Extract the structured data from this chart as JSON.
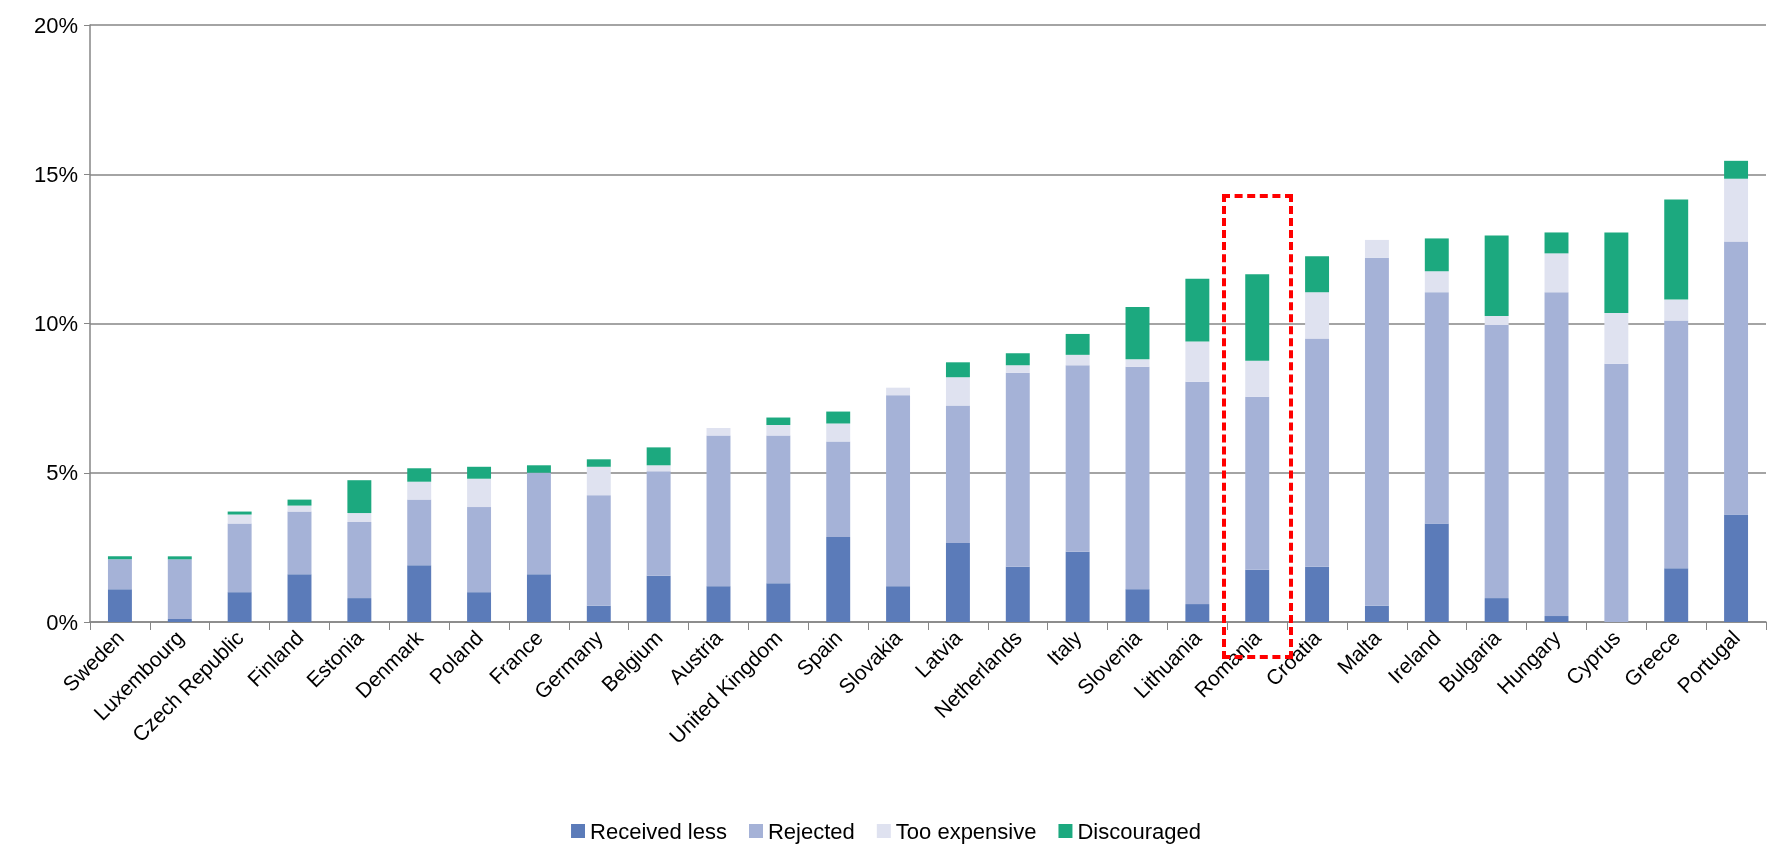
{
  "chart_data": {
    "type": "bar",
    "stacked": true,
    "categories": [
      "Sweden",
      "Luxembourg",
      "Czech Republic",
      "Finland",
      "Estonia",
      "Denmark",
      "Poland",
      "France",
      "Germany",
      "Belgium",
      "Austria",
      "United Kingdom",
      "Spain",
      "Slovakia",
      "Latvia",
      "Netherlands",
      "Italy",
      "Slovenia",
      "Lithuania",
      "Romania",
      "Croatia",
      "Malta",
      "Ireland",
      "Bulgaria",
      "Hungary",
      "Cyprus",
      "Greece",
      "Portugal"
    ],
    "series": [
      {
        "name": "Received less",
        "color": "#5b7bb9",
        "values": [
          1.1,
          0.1,
          1.0,
          1.6,
          0.8,
          1.9,
          1.0,
          1.6,
          0.55,
          1.55,
          1.2,
          1.3,
          2.85,
          1.2,
          2.65,
          1.85,
          2.35,
          1.1,
          0.6,
          1.75,
          1.85,
          0.55,
          3.3,
          0.8,
          0.2,
          0,
          1.8,
          3.6
        ]
      },
      {
        "name": "Rejected",
        "color": "#a5b2d7",
        "values": [
          1.0,
          2.0,
          2.3,
          2.1,
          2.55,
          2.2,
          2.85,
          3.4,
          3.7,
          3.5,
          5.05,
          4.95,
          3.2,
          6.4,
          4.6,
          6.5,
          6.25,
          7.45,
          7.45,
          5.8,
          7.65,
          11.65,
          7.75,
          9.15,
          10.85,
          8.65,
          8.3,
          9.15
        ]
      },
      {
        "name": "Too expensive",
        "color": "#dfe2f0",
        "values": [
          0,
          0,
          0.3,
          0.2,
          0.3,
          0.6,
          0.95,
          0,
          0.95,
          0.2,
          0.25,
          0.35,
          0.6,
          0.25,
          0.95,
          0.25,
          0.35,
          0.25,
          1.35,
          1.2,
          1.55,
          0.6,
          0.7,
          0.3,
          1.3,
          1.7,
          0.7,
          2.1
        ]
      },
      {
        "name": "Discouraged",
        "color": "#1ca97f",
        "values": [
          0.1,
          0.1,
          0.1,
          0.2,
          1.1,
          0.45,
          0.4,
          0.25,
          0.25,
          0.6,
          0,
          0.25,
          0.4,
          0,
          0.5,
          0.4,
          0.7,
          1.75,
          2.1,
          2.9,
          1.2,
          0,
          1.1,
          2.7,
          0.7,
          2.7,
          3.35,
          0.6
        ]
      }
    ],
    "ylim": [
      0,
      20
    ],
    "yticks": [
      {
        "value": 0,
        "label": "0%"
      },
      {
        "value": 5,
        "label": "5%"
      },
      {
        "value": 10,
        "label": "10%"
      },
      {
        "value": 15,
        "label": "15%"
      },
      {
        "value": 20,
        "label": "20%"
      }
    ],
    "grid": "y",
    "legend": "bottom"
  }
}
